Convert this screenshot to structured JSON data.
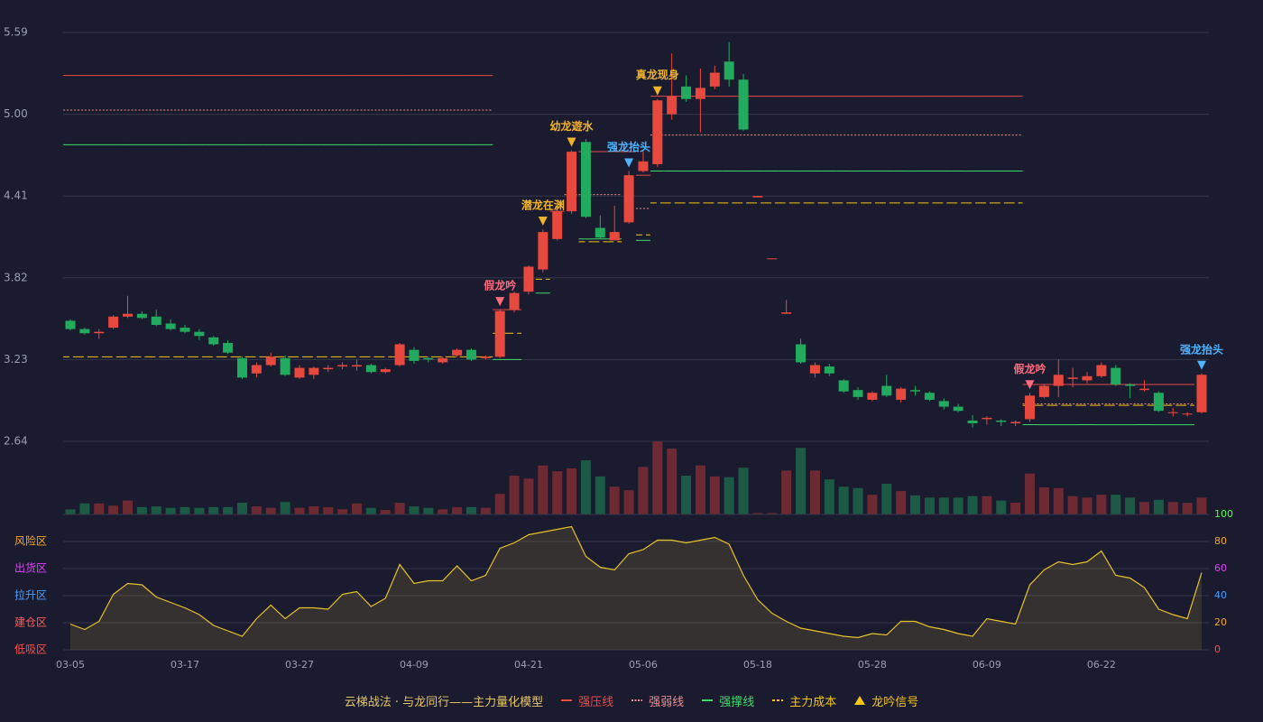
{
  "chart_data": {
    "type": "candlestick",
    "categories": [
      "03-05",
      null,
      null,
      null,
      null,
      null,
      null,
      null,
      "03-17",
      null,
      null,
      null,
      null,
      null,
      null,
      null,
      "03-27",
      null,
      null,
      null,
      null,
      null,
      null,
      null,
      "04-09",
      null,
      null,
      null,
      null,
      null,
      null,
      null,
      "04-21",
      null,
      null,
      null,
      null,
      null,
      null,
      null,
      "05-06",
      null,
      null,
      null,
      null,
      null,
      null,
      null,
      "05-18",
      null,
      null,
      null,
      null,
      null,
      null,
      null,
      "05-28",
      null,
      null,
      null,
      null,
      null,
      null,
      null,
      "06-09",
      null,
      null,
      null,
      null,
      null,
      null,
      null,
      "06-22",
      null,
      null,
      null,
      null,
      null,
      null,
      null
    ],
    "open": [
      3.51,
      3.45,
      3.42,
      3.46,
      3.54,
      3.56,
      3.54,
      3.49,
      3.46,
      3.43,
      3.39,
      3.35,
      3.24,
      3.13,
      3.19,
      3.24,
      3.1,
      3.12,
      3.16,
      3.18,
      3.18,
      3.19,
      3.14,
      3.19,
      3.3,
      3.24,
      3.21,
      3.26,
      3.3,
      3.24,
      3.25,
      3.59,
      3.72,
      3.88,
      4.1,
      4.3,
      4.8,
      4.18,
      4.09,
      4.22,
      4.59,
      4.64,
      5.0,
      5.2,
      5.11,
      5.2,
      5.38,
      5.25,
      4.4,
      3.96,
      3.56,
      3.34,
      3.13,
      3.18,
      3.08,
      3.01,
      2.94,
      3.04,
      2.94,
      3.01,
      2.99,
      2.93,
      2.89,
      2.79,
      2.8,
      2.79,
      2.77,
      2.8,
      2.96,
      3.04,
      3.09,
      3.08,
      3.11,
      3.17,
      3.05,
      3.01,
      2.99,
      2.85,
      2.84,
      2.85
    ],
    "high": [
      3.52,
      3.46,
      3.45,
      3.55,
      3.69,
      3.58,
      3.59,
      3.52,
      3.48,
      3.45,
      3.4,
      3.37,
      3.25,
      3.21,
      3.28,
      3.26,
      3.19,
      3.18,
      3.19,
      3.21,
      3.23,
      3.2,
      3.17,
      3.35,
      3.32,
      3.25,
      3.25,
      3.31,
      3.31,
      3.26,
      3.59,
      3.72,
      3.91,
      4.17,
      4.34,
      4.74,
      4.82,
      4.27,
      4.34,
      4.59,
      4.74,
      5.11,
      5.44,
      5.28,
      5.33,
      5.35,
      5.52,
      5.29,
      4.41,
      3.96,
      3.66,
      3.38,
      3.21,
      3.2,
      3.09,
      3.03,
      3.0,
      3.12,
      3.03,
      3.04,
      3.0,
      2.95,
      2.91,
      2.83,
      2.82,
      2.8,
      2.79,
      2.99,
      3.05,
      3.23,
      3.17,
      3.14,
      3.21,
      3.19,
      3.06,
      3.08,
      3.0,
      2.88,
      2.85,
      3.13
    ],
    "low": [
      3.44,
      3.41,
      3.38,
      3.45,
      3.53,
      3.52,
      3.47,
      3.44,
      3.42,
      3.37,
      3.33,
      3.27,
      3.09,
      3.1,
      3.18,
      3.11,
      3.09,
      3.09,
      3.14,
      3.16,
      3.15,
      3.13,
      3.13,
      3.18,
      3.2,
      3.21,
      3.2,
      3.25,
      3.22,
      3.23,
      3.24,
      3.57,
      3.7,
      3.86,
      4.09,
      4.28,
      4.25,
      4.1,
      4.09,
      4.21,
      4.58,
      4.62,
      4.96,
      5.09,
      4.87,
      5.18,
      5.2,
      4.88,
      4.4,
      3.96,
      3.56,
      3.2,
      3.1,
      3.11,
      2.99,
      2.94,
      2.93,
      2.96,
      2.92,
      2.97,
      2.93,
      2.87,
      2.85,
      2.74,
      2.76,
      2.75,
      2.75,
      2.78,
      2.95,
      2.96,
      3.03,
      3.06,
      3.1,
      3.04,
      2.95,
      3.0,
      2.85,
      2.82,
      2.82,
      2.84
    ],
    "close": [
      3.45,
      3.42,
      3.43,
      3.54,
      3.56,
      3.53,
      3.48,
      3.45,
      3.43,
      3.4,
      3.34,
      3.28,
      3.1,
      3.19,
      3.25,
      3.12,
      3.17,
      3.17,
      3.17,
      3.19,
      3.19,
      3.14,
      3.16,
      3.34,
      3.22,
      3.23,
      3.24,
      3.3,
      3.23,
      3.25,
      3.58,
      3.71,
      3.9,
      4.15,
      4.3,
      4.73,
      4.26,
      4.11,
      4.15,
      4.56,
      4.66,
      5.1,
      5.13,
      5.11,
      5.19,
      5.3,
      5.25,
      4.89,
      4.41,
      3.96,
      3.57,
      3.21,
      3.19,
      3.13,
      3.0,
      2.96,
      2.99,
      2.97,
      3.02,
      3.0,
      2.94,
      2.89,
      2.86,
      2.77,
      2.81,
      2.78,
      2.78,
      2.97,
      3.04,
      3.12,
      3.1,
      3.11,
      3.19,
      3.05,
      3.04,
      3.02,
      2.86,
      2.85,
      2.84,
      3.12
    ],
    "up_color": "#e8493f",
    "down_color": "#22ab5e",
    "ylim": [
      2.64,
      5.59
    ],
    "yticks": [
      2.64,
      3.23,
      3.82,
      4.41,
      {
        "value": 5,
        "label": "5.00"
      },
      5.59
    ],
    "grid": true,
    "levels": [
      {
        "name": "强压线",
        "color": "#e84a4a",
        "style": "solid",
        "values": [
          5.28,
          5.28,
          5.28,
          5.28,
          5.28,
          5.28,
          5.28,
          5.28,
          5.28,
          5.28,
          5.28,
          5.28,
          5.28,
          5.28,
          5.28,
          5.28,
          5.28,
          5.28,
          5.28,
          5.28,
          5.28,
          5.28,
          5.28,
          5.28,
          5.28,
          5.28,
          5.28,
          5.28,
          5.28,
          5.28,
          3.59,
          3.59,
          null,
          null,
          4.3,
          null,
          4.73,
          4.73,
          4.73,
          4.73,
          4.56,
          5.13,
          5.13,
          5.13,
          5.13,
          5.13,
          5.13,
          5.13,
          5.13,
          5.13,
          5.13,
          5.13,
          5.13,
          5.13,
          5.13,
          5.13,
          5.13,
          5.13,
          5.13,
          5.13,
          5.13,
          5.13,
          5.13,
          5.13,
          5.13,
          5.13,
          5.13,
          3.05,
          3.05,
          3.05,
          3.05,
          3.05,
          3.05,
          3.05,
          3.05,
          3.05,
          3.05,
          3.05,
          3.05,
          null
        ]
      },
      {
        "name": "强弱线",
        "color": "#f08a8a",
        "style": "dotted",
        "values": [
          5.03,
          5.03,
          5.03,
          5.03,
          5.03,
          5.03,
          5.03,
          5.03,
          5.03,
          5.03,
          5.03,
          5.03,
          5.03,
          5.03,
          5.03,
          5.03,
          5.03,
          5.03,
          5.03,
          5.03,
          5.03,
          5.03,
          5.03,
          5.03,
          5.03,
          5.03,
          5.03,
          5.03,
          5.03,
          5.03,
          null,
          null,
          null,
          null,
          null,
          4.42,
          4.42,
          4.42,
          4.42,
          null,
          4.32,
          4.85,
          4.85,
          4.85,
          4.85,
          4.85,
          4.85,
          4.85,
          4.85,
          4.85,
          4.85,
          4.85,
          4.85,
          4.85,
          4.85,
          4.85,
          4.85,
          4.85,
          4.85,
          4.85,
          4.85,
          4.85,
          4.85,
          4.85,
          4.85,
          4.85,
          4.85,
          2.91,
          2.91,
          2.91,
          2.91,
          2.91,
          2.91,
          2.91,
          2.91,
          2.91,
          2.91,
          2.91,
          2.91,
          null
        ]
      },
      {
        "name": "强撑线",
        "color": "#3ddc6e",
        "style": "solid",
        "values": [
          4.78,
          4.78,
          4.78,
          4.78,
          4.78,
          4.78,
          4.78,
          4.78,
          4.78,
          4.78,
          4.78,
          4.78,
          4.78,
          4.78,
          4.78,
          4.78,
          4.78,
          4.78,
          4.78,
          4.78,
          4.78,
          4.78,
          4.78,
          4.78,
          4.78,
          4.78,
          4.78,
          4.78,
          4.78,
          4.78,
          3.23,
          3.23,
          null,
          3.71,
          null,
          null,
          4.1,
          4.1,
          4.1,
          null,
          4.09,
          4.59,
          4.59,
          4.59,
          4.59,
          4.59,
          4.59,
          4.59,
          4.59,
          4.59,
          4.59,
          4.59,
          4.59,
          4.59,
          4.59,
          4.59,
          4.59,
          4.59,
          4.59,
          4.59,
          4.59,
          4.59,
          4.59,
          4.59,
          4.59,
          4.59,
          4.59,
          2.76,
          2.76,
          2.76,
          2.76,
          2.76,
          2.76,
          2.76,
          2.76,
          2.76,
          2.76,
          2.76,
          2.76,
          null
        ]
      },
      {
        "name": "主力成本",
        "color": "#f5c518",
        "style": "dashed",
        "values": [
          3.25,
          3.25,
          3.25,
          3.25,
          3.25,
          3.25,
          3.25,
          3.25,
          3.25,
          3.25,
          3.25,
          3.25,
          3.25,
          3.25,
          3.25,
          3.25,
          3.25,
          3.25,
          3.25,
          3.25,
          3.25,
          3.25,
          3.25,
          3.25,
          3.25,
          3.25,
          3.25,
          3.25,
          3.25,
          3.25,
          3.42,
          3.42,
          null,
          3.81,
          null,
          null,
          4.08,
          4.08,
          4.08,
          null,
          4.13,
          4.36,
          4.36,
          4.36,
          4.36,
          4.36,
          4.36,
          4.36,
          4.36,
          4.36,
          4.36,
          4.36,
          4.36,
          4.36,
          4.36,
          4.36,
          4.36,
          4.36,
          4.36,
          4.36,
          4.36,
          4.36,
          4.36,
          4.36,
          4.36,
          4.36,
          4.36,
          2.9,
          2.9,
          2.9,
          2.9,
          2.9,
          2.9,
          2.9,
          2.9,
          2.9,
          2.9,
          2.9,
          2.9,
          null
        ]
      }
    ],
    "signals": [
      null,
      null,
      null,
      null,
      null,
      null,
      null,
      null,
      null,
      null,
      null,
      null,
      null,
      null,
      null,
      null,
      null,
      null,
      null,
      null,
      null,
      null,
      null,
      null,
      null,
      null,
      null,
      null,
      null,
      null,
      {
        "text": "假龙吟",
        "color": "#ff6b81"
      },
      null,
      null,
      {
        "text": "潜龙在渊",
        "color": "#f0b429"
      },
      null,
      {
        "text": "幼龙遊水",
        "color": "#f0b429"
      },
      null,
      null,
      null,
      {
        "text": "强龙抬头",
        "color": "#4fb3ff"
      },
      null,
      {
        "text": "真龙现身",
        "color": "#f0b429"
      },
      null,
      null,
      null,
      null,
      null,
      null,
      null,
      null,
      null,
      null,
      null,
      null,
      null,
      null,
      null,
      null,
      null,
      null,
      null,
      null,
      null,
      null,
      null,
      null,
      null,
      {
        "text": "假龙吟",
        "color": "#ff6b81"
      },
      null,
      null,
      null,
      null,
      null,
      null,
      null,
      null,
      null,
      null,
      null,
      {
        "text": "强龙抬头",
        "color": "#4fb3ff"
      }
    ],
    "signal_legend": {
      "name": "龙吟信号",
      "color": "#f5c518"
    },
    "volume": {
      "ylim": [
        0,
        100
      ],
      "up_color": "#6e2a33",
      "down_color": "#1d5a45",
      "values": [
        7,
        15,
        15,
        12,
        19,
        10,
        11,
        9,
        10,
        9,
        10,
        10,
        16,
        11,
        9,
        17,
        9,
        11,
        10,
        7,
        15,
        9,
        6,
        16,
        11,
        9,
        7,
        10,
        10,
        9,
        28,
        53,
        49,
        67,
        59,
        63,
        74,
        52,
        38,
        33,
        65,
        100,
        90,
        53,
        67,
        52,
        51,
        64,
        2,
        2,
        60,
        91,
        60,
        48,
        38,
        36,
        27,
        42,
        32,
        26,
        23,
        23,
        23,
        25,
        25,
        19,
        16,
        56,
        37,
        36,
        25,
        23,
        27,
        27,
        23,
        17,
        20,
        17,
        16,
        23
      ]
    },
    "indicator": {
      "color": "#e6c229",
      "ylim": [
        0,
        100
      ],
      "yticks": [
        0,
        20,
        40,
        60,
        80,
        100
      ],
      "ytick_colors": [
        "#ff4d4d",
        "#f5a623",
        "#4a9eff",
        "#e040fb",
        "#f5a623",
        "#4cff4c"
      ],
      "zones": [
        {
          "label": "风险区",
          "value": 80,
          "color": "#f5a623"
        },
        {
          "label": "出货区",
          "value": 60,
          "color": "#e040fb"
        },
        {
          "label": "拉升区",
          "value": 40,
          "color": "#4a9eff"
        },
        {
          "label": "建仓区",
          "value": 20,
          "color": "#ff5c5c"
        },
        {
          "label": "低吸区",
          "value": 0,
          "color": "#ff4d4d"
        }
      ],
      "values": [
        19,
        15,
        21,
        41,
        49,
        48,
        39,
        35,
        31,
        26,
        18,
        14,
        10,
        23,
        33,
        23,
        31,
        31,
        30,
        41,
        43,
        32,
        38,
        63,
        49,
        51,
        51,
        62,
        51,
        55,
        75,
        79,
        85,
        87,
        89,
        91,
        69,
        61,
        59,
        71,
        74,
        81,
        81,
        79,
        81,
        83,
        78,
        55,
        37,
        27,
        21,
        16,
        14,
        12,
        10,
        9,
        12,
        11,
        21,
        21,
        17,
        15,
        12,
        10,
        23,
        21,
        19,
        48,
        59,
        65,
        63,
        65,
        73,
        55,
        53,
        46,
        30,
        26,
        23,
        57
      ]
    },
    "legend_title": "云梯战法 · 与龙同行——主力量化模型"
  }
}
